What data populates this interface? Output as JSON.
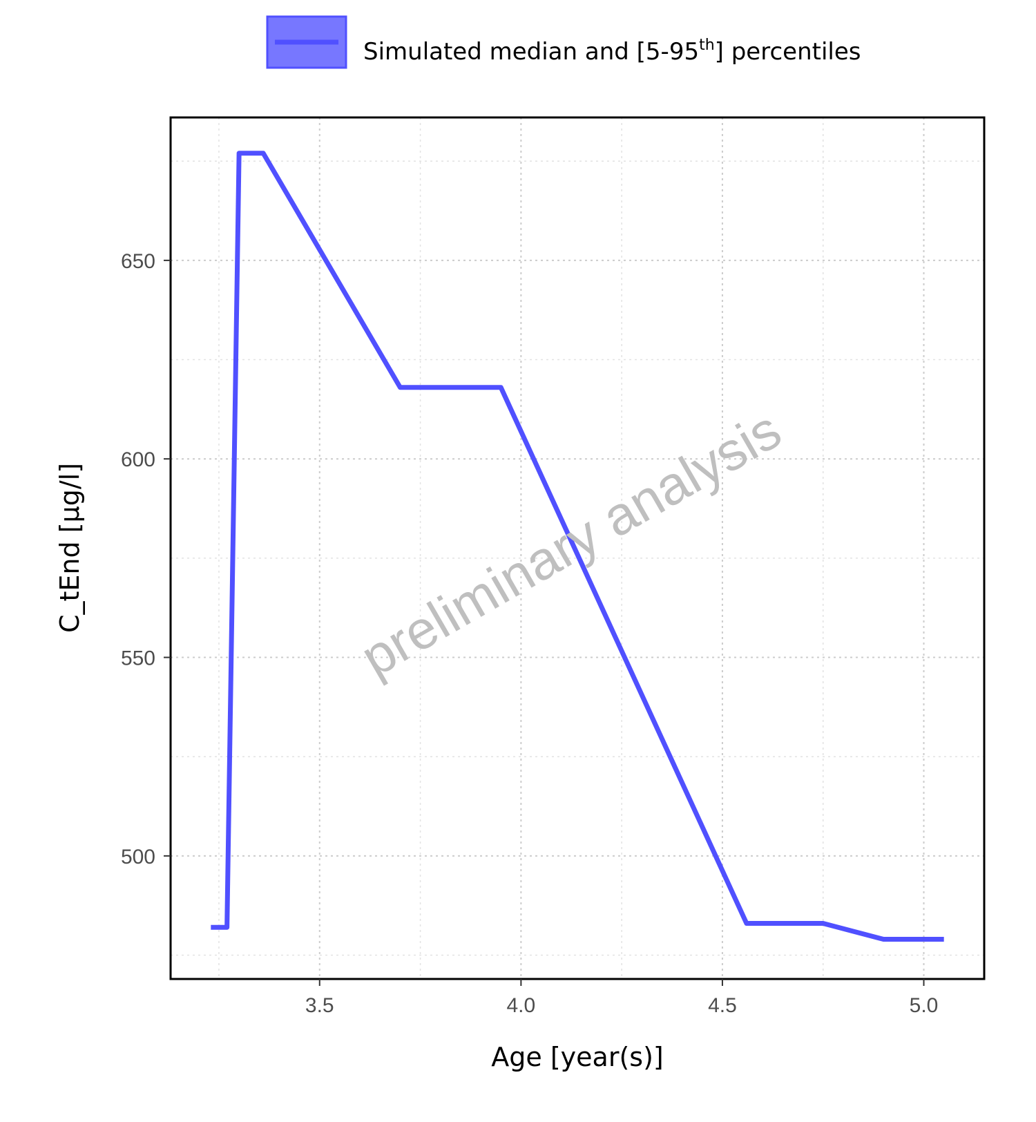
{
  "chart_data": {
    "type": "line",
    "xlabel": "Age [year(s)]",
    "ylabel": "C_tEnd [µg/l]",
    "xlim": [
      3.13,
      5.15
    ],
    "ylim": [
      469,
      686
    ],
    "x_ticks": [
      3.5,
      4.0,
      4.5,
      5.0
    ],
    "x_tick_labels": [
      "3.5",
      "4.0",
      "4.5",
      "5.0"
    ],
    "y_ticks": [
      500,
      550,
      600,
      650
    ],
    "y_tick_labels": [
      "500",
      "550",
      "600",
      "650"
    ],
    "grid": true,
    "legend": {
      "placement": "top",
      "label_main": "Simulated median and [5-95",
      "label_sup": "th",
      "label_end": "] percentiles"
    },
    "watermark": "preliminary analysis",
    "series": [
      {
        "name": "Simulated median and [5-95th] percentiles",
        "color": "#5050ff",
        "fill_color": "#7777ff",
        "x": [
          3.23,
          3.27,
          3.3,
          3.36,
          3.7,
          3.95,
          4.56,
          4.75,
          4.9,
          5.05
        ],
        "y": [
          482,
          482,
          677,
          677,
          618,
          618,
          483,
          483,
          479,
          479
        ]
      }
    ]
  }
}
